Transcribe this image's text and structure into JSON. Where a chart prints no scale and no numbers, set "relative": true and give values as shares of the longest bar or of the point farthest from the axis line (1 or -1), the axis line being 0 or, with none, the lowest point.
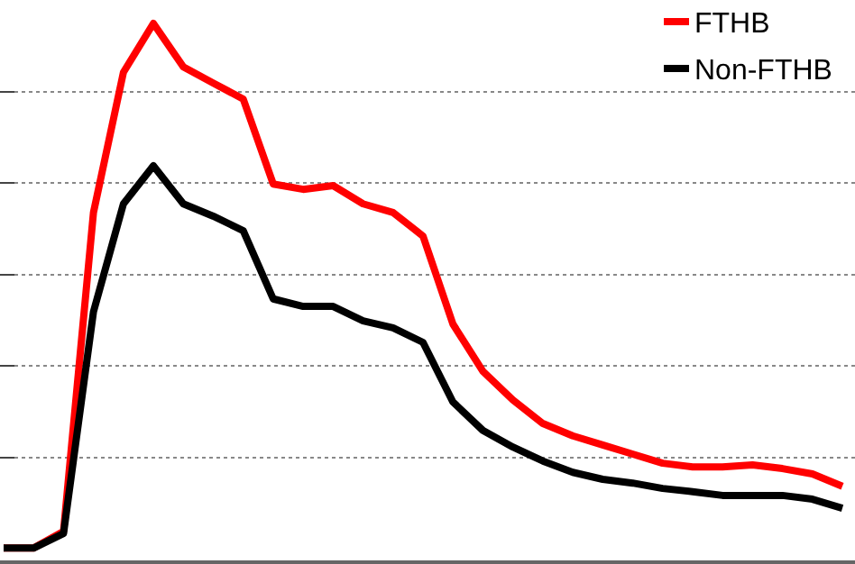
{
  "chart_data": {
    "type": "line",
    "relative": true,
    "categories": [
      null,
      null,
      null,
      null,
      null,
      null,
      null,
      null,
      null,
      null,
      null,
      null,
      null,
      null,
      null,
      null,
      null,
      null,
      null,
      null,
      null,
      null,
      null,
      null,
      null,
      null,
      null,
      null,
      null
    ],
    "series": [
      {
        "name": "FTHB",
        "color": "#ff0000",
        "values": [
          0.023,
          0.023,
          0.054,
          0.648,
          0.909,
          1,
          0.919,
          0.889,
          0.859,
          0.701,
          0.691,
          0.698,
          0.664,
          0.648,
          0.604,
          0.44,
          0.352,
          0.299,
          0.255,
          0.232,
          0.215,
          0.198,
          0.181,
          0.174,
          0.174,
          0.178,
          0.171,
          0.161,
          0.138
        ]
      },
      {
        "name": "Non-FTHB",
        "color": "#000000",
        "values": [
          0.023,
          0.023,
          0.05,
          0.463,
          0.664,
          0.735,
          0.664,
          0.641,
          0.614,
          0.487,
          0.473,
          0.473,
          0.446,
          0.433,
          0.406,
          0.295,
          0.242,
          0.211,
          0.185,
          0.164,
          0.151,
          0.144,
          0.134,
          0.128,
          0.121,
          0.121,
          0.121,
          0.114,
          0.097
        ]
      }
    ],
    "grid": "y",
    "legend": "top right",
    "line_style": "solid",
    "marker": "none"
  }
}
